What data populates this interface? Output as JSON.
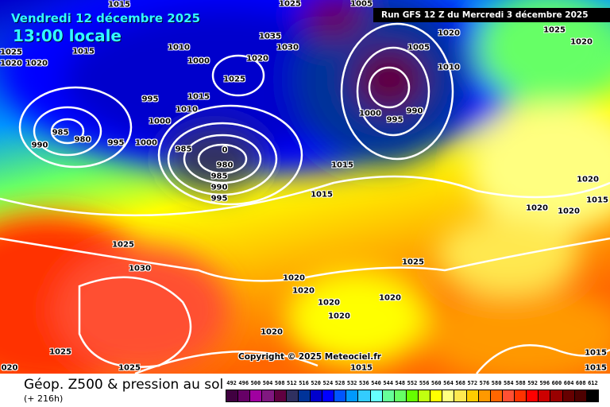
{
  "header": {
    "date": "Vendredi 12 décembre 2025",
    "time": "13:00 locale",
    "run": "Run GFS 12 Z du Mercredi 3 décembre 2025"
  },
  "map": {
    "copyright": "Copyright © 2025 Meteociel.fr",
    "isobar_labels": [
      "1015",
      "1025",
      "1005",
      "1020",
      "1025",
      "1020",
      "1025",
      "1020",
      "1015",
      "1010",
      "1000",
      "1035",
      "1030",
      "1020",
      "1025",
      "1005",
      "1010",
      "1020",
      "995",
      "1015",
      "1010",
      "1000",
      "990",
      "985",
      "980",
      "995",
      "1000",
      "985",
      "0",
      "980",
      "985",
      "990",
      "995",
      "1000",
      "995",
      "990",
      "1015",
      "1015",
      "1020",
      "1020",
      "1020",
      "1015",
      "1025",
      "1030",
      "1025",
      "1020",
      "1020",
      "1020",
      "1020",
      "1020",
      "1020",
      "1025",
      "1025",
      "020",
      "1015",
      "1015",
      "1015"
    ]
  },
  "footer": {
    "title": "Géop. Z500 & pression au sol",
    "subtitle": "(+ 216h)"
  },
  "legend": {
    "labels": [
      "492",
      "496",
      "500",
      "504",
      "508",
      "512",
      "516",
      "520",
      "524",
      "528",
      "532",
      "536",
      "540",
      "544",
      "548",
      "552",
      "556",
      "560",
      "564",
      "568",
      "572",
      "576",
      "580",
      "584",
      "588",
      "592",
      "596",
      "600",
      "604",
      "608",
      "612"
    ],
    "colors": [
      "#400040",
      "#660066",
      "#a000a0",
      "#801880",
      "#600040",
      "#303060",
      "#003399",
      "#0000cc",
      "#0000ff",
      "#0055ff",
      "#0099ff",
      "#33ccff",
      "#66ffff",
      "#66ff99",
      "#66ff66",
      "#66ff00",
      "#c0ff10",
      "#ffff00",
      "#ffff80",
      "#ffe850",
      "#ffcc00",
      "#ff9900",
      "#ff6600",
      "#ff5033",
      "#ff3300",
      "#ff0000",
      "#cc0000",
      "#990000",
      "#660000",
      "#4d0000",
      "#000000"
    ]
  }
}
